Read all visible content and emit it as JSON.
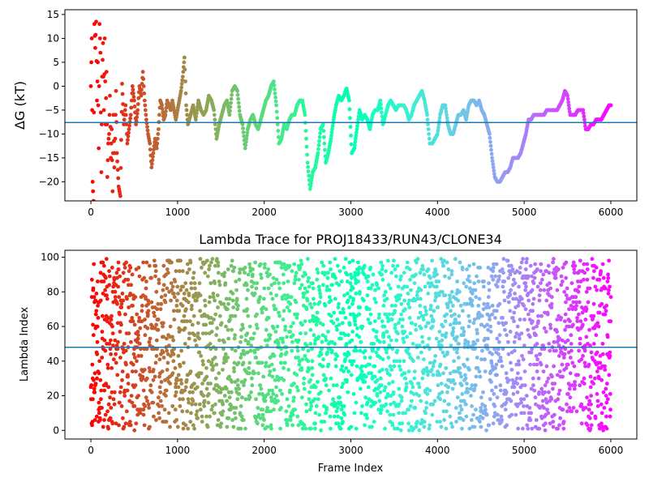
{
  "chart_data": [
    {
      "type": "scatter",
      "title": "",
      "xlabel": "",
      "ylabel": "ΔG (kT)",
      "xlim": [
        -300,
        6300
      ],
      "ylim": [
        -24,
        16
      ],
      "xticks": [
        0,
        1000,
        2000,
        3000,
        4000,
        5000,
        6000
      ],
      "xticklabels": [
        "0",
        "1000",
        "2000",
        "3000",
        "4000",
        "5000",
        "6000"
      ],
      "yticks": [
        15,
        10,
        5,
        0,
        -5,
        -10,
        -15,
        -20
      ],
      "yticklabels": [
        "15",
        "10",
        "5",
        "0",
        "−5",
        "−10",
        "−15",
        "−20"
      ],
      "colormap": "rainbow (red → violet with increasing frame index)",
      "reference_line": {
        "y": -7.6,
        "color": "#1f77b4"
      },
      "grid": false,
      "points": [
        [
          0,
          0
        ],
        [
          10,
          10
        ],
        [
          20,
          -20
        ],
        [
          30,
          -24
        ],
        [
          40,
          13
        ],
        [
          50,
          8
        ],
        [
          60,
          13.5
        ],
        [
          70,
          -3
        ],
        [
          80,
          5
        ],
        [
          90,
          -13
        ],
        [
          100,
          13
        ],
        [
          110,
          7
        ],
        [
          120,
          -18
        ],
        [
          130,
          2
        ],
        [
          140,
          9
        ],
        [
          150,
          -5
        ],
        [
          160,
          10
        ],
        [
          170,
          -8
        ],
        [
          180,
          3
        ],
        [
          190,
          -19
        ],
        [
          200,
          -12
        ],
        [
          210,
          -10
        ],
        [
          220,
          -2
        ],
        [
          230,
          -15
        ],
        [
          240,
          -9
        ],
        [
          250,
          -22
        ],
        [
          260,
          -6
        ],
        [
          270,
          -17
        ],
        [
          280,
          -11
        ],
        [
          290,
          -1
        ],
        [
          300,
          -14
        ],
        [
          320,
          -21
        ],
        [
          340,
          -23
        ],
        [
          360,
          0.5
        ],
        [
          380,
          -8
        ],
        [
          400,
          -4
        ],
        [
          420,
          -12
        ],
        [
          440,
          -9
        ],
        [
          460,
          -6
        ],
        [
          480,
          0
        ],
        [
          500,
          -3
        ],
        [
          520,
          -8
        ],
        [
          540,
          -5
        ],
        [
          560,
          0
        ],
        [
          580,
          -2
        ],
        [
          600,
          3
        ],
        [
          620,
          -3
        ],
        [
          640,
          -7
        ],
        [
          660,
          -10
        ],
        [
          680,
          -12
        ],
        [
          700,
          -17
        ],
        [
          720,
          -14
        ],
        [
          740,
          -11
        ],
        [
          760,
          -13
        ],
        [
          780,
          -9
        ],
        [
          800,
          -3
        ],
        [
          820,
          -4
        ],
        [
          840,
          -7
        ],
        [
          860,
          -6
        ],
        [
          880,
          -3
        ],
        [
          900,
          -4
        ],
        [
          920,
          -5
        ],
        [
          940,
          -3
        ],
        [
          960,
          -5
        ],
        [
          980,
          -7
        ],
        [
          1000,
          -5
        ],
        [
          1020,
          -3
        ],
        [
          1040,
          -1
        ],
        [
          1060,
          2
        ],
        [
          1080,
          6
        ],
        [
          1100,
          -4
        ],
        [
          1120,
          -8
        ],
        [
          1150,
          -6
        ],
        [
          1180,
          -4
        ],
        [
          1210,
          -7
        ],
        [
          1240,
          -3
        ],
        [
          1270,
          -5
        ],
        [
          1300,
          -6
        ],
        [
          1330,
          -5
        ],
        [
          1360,
          -2
        ],
        [
          1390,
          -3
        ],
        [
          1420,
          -5
        ],
        [
          1450,
          -11
        ],
        [
          1480,
          -8
        ],
        [
          1510,
          -6
        ],
        [
          1540,
          -4
        ],
        [
          1570,
          -3
        ],
        [
          1600,
          -6
        ],
        [
          1630,
          -1
        ],
        [
          1660,
          0
        ],
        [
          1690,
          -1
        ],
        [
          1720,
          -6
        ],
        [
          1750,
          -8
        ],
        [
          1780,
          -13
        ],
        [
          1810,
          -9
        ],
        [
          1840,
          -7
        ],
        [
          1870,
          -6
        ],
        [
          1900,
          -8
        ],
        [
          1930,
          -9
        ],
        [
          1960,
          -7
        ],
        [
          1990,
          -5
        ],
        [
          2020,
          -3
        ],
        [
          2050,
          -2
        ],
        [
          2080,
          0
        ],
        [
          2110,
          1
        ],
        [
          2140,
          -4
        ],
        [
          2170,
          -12
        ],
        [
          2200,
          -11
        ],
        [
          2230,
          -8
        ],
        [
          2260,
          -9
        ],
        [
          2290,
          -7
        ],
        [
          2320,
          -6
        ],
        [
          2350,
          -6
        ],
        [
          2380,
          -4
        ],
        [
          2410,
          -3
        ],
        [
          2440,
          -3
        ],
        [
          2470,
          -6
        ],
        [
          2500,
          -16
        ],
        [
          2530,
          -21.5
        ],
        [
          2560,
          -18
        ],
        [
          2590,
          -17
        ],
        [
          2620,
          -14
        ],
        [
          2650,
          -9
        ],
        [
          2680,
          -8
        ],
        [
          2710,
          -16
        ],
        [
          2740,
          -14
        ],
        [
          2770,
          -11
        ],
        [
          2800,
          -7
        ],
        [
          2830,
          -4
        ],
        [
          2860,
          -2
        ],
        [
          2890,
          -3
        ],
        [
          2920,
          -2
        ],
        [
          2950,
          -0.5
        ],
        [
          2980,
          -3
        ],
        [
          3010,
          -14
        ],
        [
          3040,
          -13
        ],
        [
          3070,
          -9
        ],
        [
          3100,
          -5
        ],
        [
          3130,
          -7
        ],
        [
          3160,
          -6
        ],
        [
          3190,
          -7
        ],
        [
          3220,
          -9
        ],
        [
          3250,
          -6
        ],
        [
          3280,
          -5
        ],
        [
          3310,
          -5
        ],
        [
          3340,
          -3
        ],
        [
          3370,
          -8
        ],
        [
          3400,
          -6
        ],
        [
          3430,
          -4
        ],
        [
          3460,
          -3
        ],
        [
          3490,
          -4
        ],
        [
          3520,
          -5
        ],
        [
          3550,
          -4
        ],
        [
          3580,
          -4
        ],
        [
          3610,
          -4
        ],
        [
          3640,
          -5
        ],
        [
          3670,
          -7
        ],
        [
          3700,
          -6
        ],
        [
          3730,
          -4
        ],
        [
          3760,
          -3
        ],
        [
          3790,
          -2
        ],
        [
          3820,
          -1
        ],
        [
          3850,
          -3
        ],
        [
          3880,
          -6
        ],
        [
          3910,
          -12
        ],
        [
          3940,
          -12
        ],
        [
          3970,
          -11
        ],
        [
          4000,
          -10
        ],
        [
          4030,
          -6
        ],
        [
          4060,
          -4
        ],
        [
          4090,
          -4
        ],
        [
          4120,
          -8
        ],
        [
          4150,
          -10
        ],
        [
          4180,
          -10
        ],
        [
          4210,
          -8
        ],
        [
          4240,
          -6
        ],
        [
          4270,
          -6
        ],
        [
          4300,
          -5
        ],
        [
          4330,
          -7
        ],
        [
          4360,
          -4
        ],
        [
          4390,
          -3
        ],
        [
          4420,
          -3
        ],
        [
          4450,
          -4
        ],
        [
          4480,
          -3
        ],
        [
          4510,
          -5
        ],
        [
          4540,
          -6
        ],
        [
          4570,
          -8
        ],
        [
          4600,
          -10
        ],
        [
          4630,
          -15
        ],
        [
          4660,
          -19
        ],
        [
          4690,
          -20
        ],
        [
          4720,
          -20
        ],
        [
          4750,
          -19
        ],
        [
          4780,
          -18
        ],
        [
          4810,
          -18
        ],
        [
          4840,
          -17
        ],
        [
          4870,
          -15
        ],
        [
          4900,
          -15
        ],
        [
          4930,
          -15
        ],
        [
          4960,
          -14
        ],
        [
          4990,
          -12
        ],
        [
          5020,
          -10
        ],
        [
          5050,
          -7
        ],
        [
          5080,
          -7
        ],
        [
          5110,
          -6
        ],
        [
          5140,
          -6
        ],
        [
          5170,
          -6
        ],
        [
          5200,
          -6
        ],
        [
          5230,
          -6
        ],
        [
          5260,
          -5
        ],
        [
          5290,
          -5
        ],
        [
          5320,
          -5
        ],
        [
          5350,
          -5
        ],
        [
          5380,
          -5
        ],
        [
          5410,
          -4
        ],
        [
          5440,
          -3
        ],
        [
          5470,
          -1
        ],
        [
          5500,
          -2
        ],
        [
          5530,
          -6
        ],
        [
          5560,
          -6
        ],
        [
          5590,
          -6
        ],
        [
          5620,
          -5
        ],
        [
          5650,
          -5
        ],
        [
          5680,
          -5
        ],
        [
          5710,
          -9
        ],
        [
          5740,
          -9
        ],
        [
          5770,
          -8
        ],
        [
          5800,
          -8
        ],
        [
          5830,
          -7
        ],
        [
          5860,
          -7
        ],
        [
          5890,
          -7
        ],
        [
          5920,
          -6
        ],
        [
          5950,
          -5
        ],
        [
          5980,
          -4
        ],
        [
          6000,
          -4
        ]
      ]
    },
    {
      "type": "scatter",
      "title": "Lambda Trace for PROJ18433/RUN43/CLONE34",
      "xlabel": "Frame Index",
      "ylabel": "Lambda Index",
      "xlim": [
        -300,
        6300
      ],
      "ylim": [
        -5,
        104
      ],
      "xticks": [
        0,
        1000,
        2000,
        3000,
        4000,
        5000,
        6000
      ],
      "xticklabels": [
        "0",
        "1000",
        "2000",
        "3000",
        "4000",
        "5000",
        "6000"
      ],
      "yticks": [
        0,
        20,
        40,
        60,
        80,
        100
      ],
      "yticklabels": [
        "0",
        "20",
        "40",
        "60",
        "80",
        "100"
      ],
      "colormap": "rainbow (red → violet with increasing frame index)",
      "reference_line": {
        "y": 48,
        "color": "#1f77b4"
      },
      "grid": false,
      "point_count_estimate": 3000,
      "value_range": [
        0,
        99
      ],
      "notes": "Dense scatter of lambda index (0–99) versus frame index (0–6000)."
    }
  ]
}
